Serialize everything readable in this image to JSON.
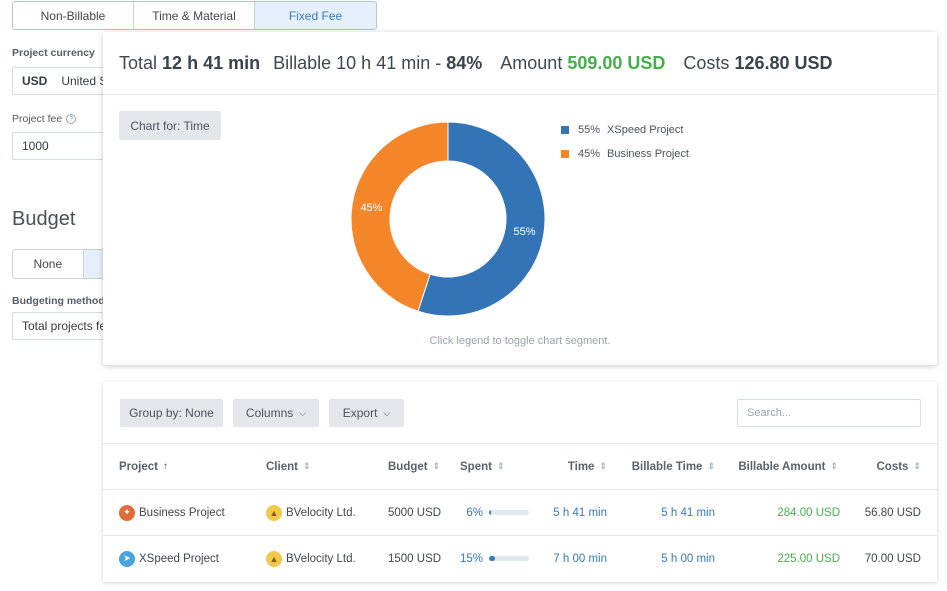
{
  "billing_type": {
    "options": [
      "Non-Billable",
      "Time & Material",
      "Fixed Fee"
    ],
    "selected": "Fixed Fee"
  },
  "currency": {
    "label": "Project currency",
    "code": "USD",
    "name": "United St"
  },
  "fee": {
    "label": "Project fee",
    "value": "1000"
  },
  "budget": {
    "title": "Budget",
    "options": [
      "None"
    ],
    "method_label": "Budgeting method",
    "method_value": "Total projects fe"
  },
  "summary": {
    "total_label": "Total",
    "total_value": "12 h 41 min",
    "billable_label": "Billable",
    "billable_value": "10 h 41 min",
    "billable_sep": "-",
    "billable_pct": "84%",
    "amount_label": "Amount",
    "amount_value": "509.00 USD",
    "costs_label": "Costs",
    "costs_value": "126.80 USD"
  },
  "chart": {
    "chart_for_label": "Chart for: Time",
    "hint": "Click legend to toggle chart segment."
  },
  "chart_data": {
    "type": "pie",
    "categories": [
      "XSpeed Project",
      "Business Project"
    ],
    "values": [
      55,
      45
    ],
    "labels": [
      "55%",
      "45%"
    ],
    "colors": [
      "#3274b5",
      "#f4862a"
    ],
    "legend_position": "top-right"
  },
  "toolbar": {
    "group_by": "Group by: None",
    "columns": "Columns",
    "export": "Export",
    "search_placeholder": "Search..."
  },
  "table": {
    "columns": [
      "Project",
      "Client",
      "Budget",
      "Spent",
      "Time",
      "Billable Time",
      "Billable Amount",
      "Costs"
    ],
    "rows": [
      {
        "project": "Business Project",
        "client": "BVelocity Ltd.",
        "budget": "5000 USD",
        "spent": "6%",
        "spent_value": 6,
        "time": "5 h 41 min",
        "billable_time": "5 h 41 min",
        "billable_amount": "284.00 USD",
        "costs": "56.80 USD"
      },
      {
        "project": "XSpeed Project",
        "client": "BVelocity Ltd.",
        "budget": "1500 USD",
        "spent": "15%",
        "spent_value": 15,
        "time": "7 h 00 min",
        "billable_time": "5 h 00 min",
        "billable_amount": "225.00 USD",
        "costs": "70.00 USD"
      }
    ]
  }
}
